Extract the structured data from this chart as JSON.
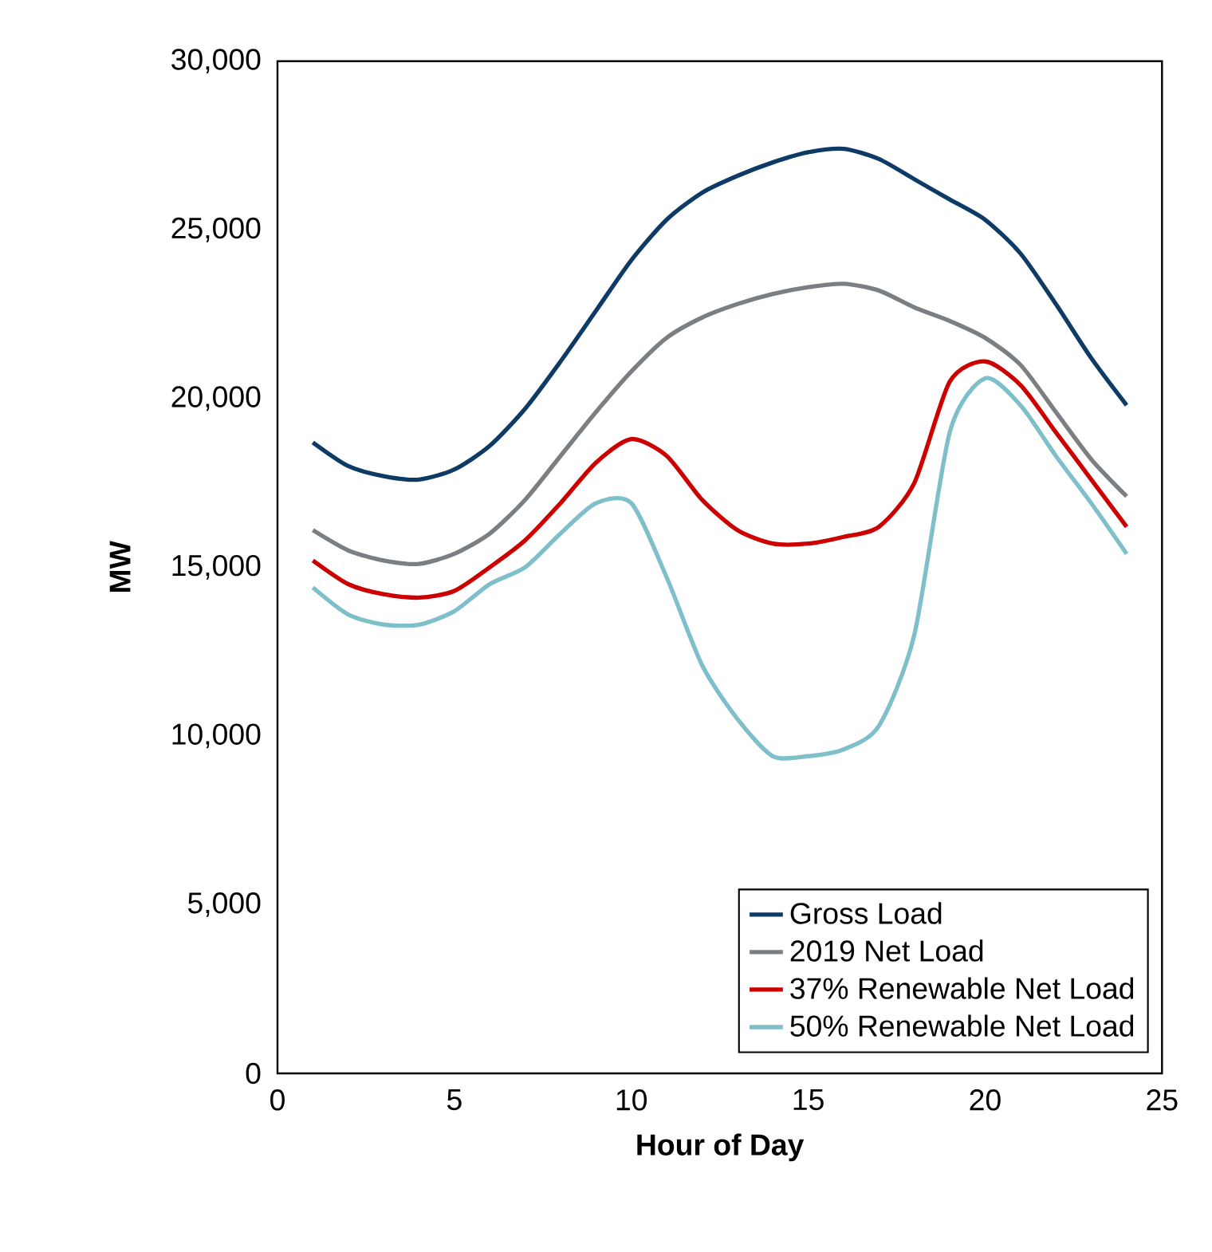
{
  "chart_data": {
    "type": "line",
    "xlabel": "Hour of Day",
    "ylabel": "MW",
    "x": [
      1,
      2,
      3,
      4,
      5,
      6,
      7,
      8,
      9,
      10,
      11,
      12,
      13,
      14,
      15,
      16,
      17,
      18,
      19,
      20,
      21,
      22,
      23,
      24
    ],
    "series": [
      {
        "name": "Gross Load",
        "color": "#0e3a66",
        "values": [
          18700,
          18000,
          17700,
          17600,
          17900,
          18600,
          19700,
          21100,
          22600,
          24100,
          25300,
          26100,
          26600,
          27000,
          27300,
          27400,
          27100,
          26500,
          25900,
          25300,
          24300,
          22800,
          21200,
          19800
        ]
      },
      {
        "name": "2019 Net Load",
        "color": "#7a7f84",
        "values": [
          16100,
          15500,
          15200,
          15100,
          15400,
          16000,
          17000,
          18300,
          19600,
          20800,
          21800,
          22400,
          22800,
          23100,
          23300,
          23400,
          23200,
          22700,
          22300,
          21800,
          21000,
          19600,
          18200,
          17100
        ]
      },
      {
        "name": "37% Renewable Net Load",
        "color": "#cc0000",
        "values": [
          15200,
          14500,
          14200,
          14100,
          14300,
          15000,
          15800,
          16900,
          18100,
          18800,
          18300,
          17000,
          16100,
          15700,
          15700,
          15900,
          16200,
          17500,
          20500,
          21100,
          20400,
          19000,
          17600,
          16200
        ]
      },
      {
        "name": "50% Renewable Net Load",
        "color": "#7fbfca",
        "values": [
          14400,
          13600,
          13300,
          13300,
          13700,
          14500,
          15000,
          16000,
          16900,
          16900,
          14700,
          12100,
          10500,
          9400,
          9400,
          9600,
          10300,
          13000,
          19000,
          20600,
          19800,
          18300,
          16900,
          15400
        ]
      }
    ],
    "xlim": [
      0,
      25
    ],
    "xticks": [
      0,
      5,
      10,
      15,
      20,
      25
    ],
    "ylim": [
      0,
      30000
    ],
    "yticks": [
      {
        "value": 0,
        "label": "0"
      },
      {
        "value": 5000,
        "label": "5,000"
      },
      {
        "value": 10000,
        "label": "10,000"
      },
      {
        "value": 15000,
        "label": "15,000"
      },
      {
        "value": 20000,
        "label": "20,000"
      },
      {
        "value": 25000,
        "label": "25,000"
      },
      {
        "value": 30000,
        "label": "30,000"
      }
    ],
    "grid": false,
    "legend": "bottom right",
    "marker": "none",
    "line_style": "solid"
  }
}
